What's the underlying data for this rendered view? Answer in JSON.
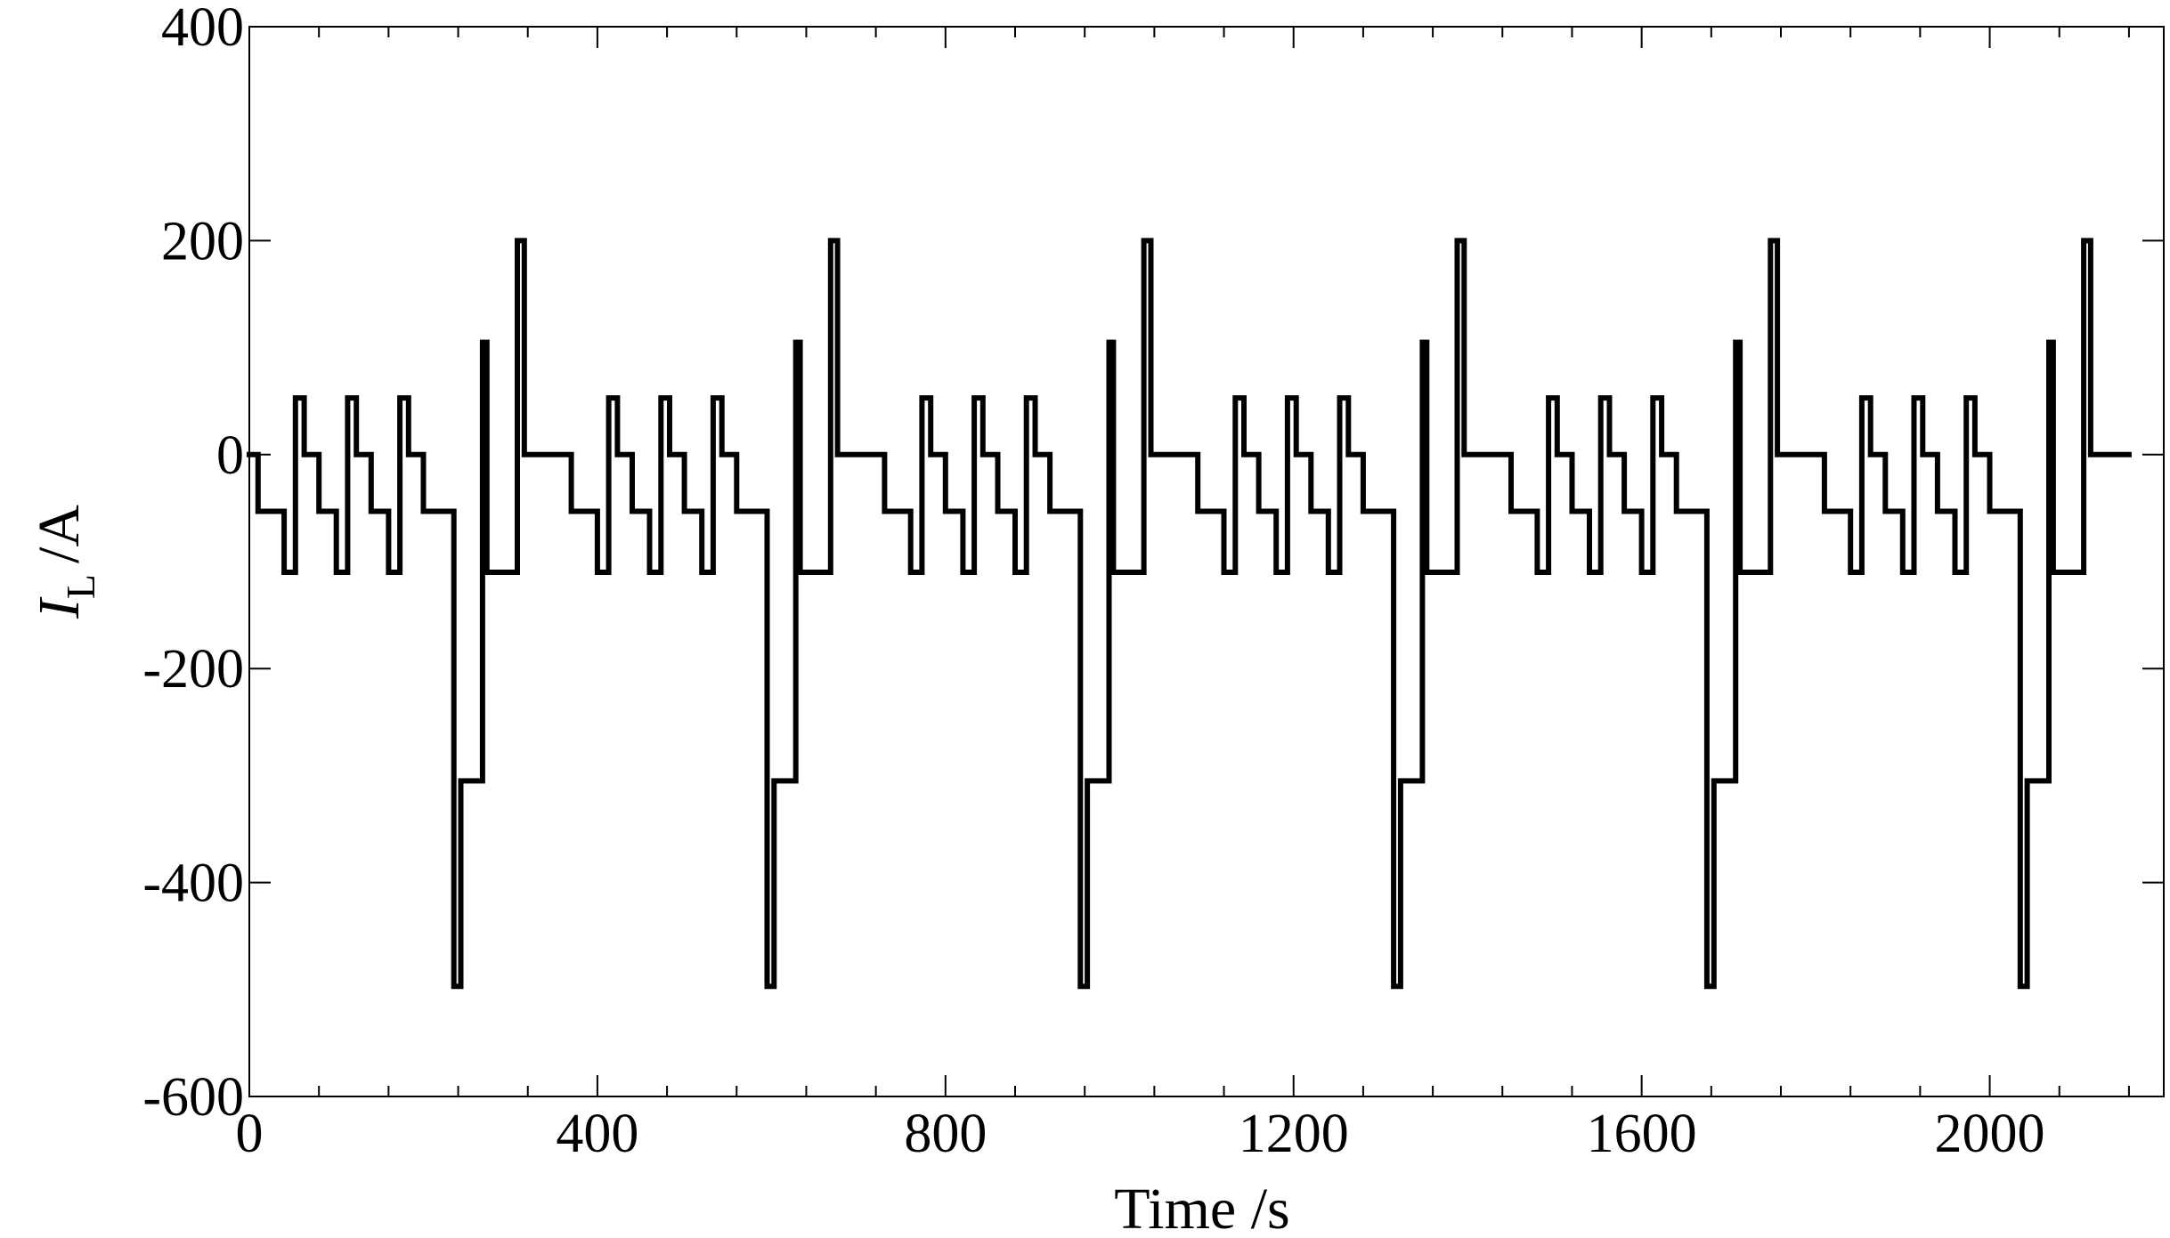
{
  "chart_data": {
    "type": "line",
    "title": "",
    "xlabel": "Time /s",
    "ylabel": {
      "main": "I",
      "subscript": "L",
      "unit": "/A"
    },
    "xlim": [
      0,
      2200
    ],
    "ylim": [
      -600,
      400
    ],
    "xticks": [
      0,
      400,
      800,
      1200,
      1600,
      2000
    ],
    "xtick_labels": [
      "0",
      "400",
      "800",
      "1200",
      "1600",
      "2000"
    ],
    "x_minor_step": 80,
    "yticks": [
      -600,
      -400,
      -200,
      0,
      200,
      400
    ],
    "ytick_labels": [
      "-600",
      "-400",
      "-200",
      "0",
      "200",
      "400"
    ],
    "grid": false,
    "legend": "none",
    "line_color": "#000000",
    "cycle": {
      "period": 360,
      "count": 6,
      "end_time": 2160,
      "profile": [
        [
          0,
          0
        ],
        [
          10,
          0
        ],
        [
          10,
          -53
        ],
        [
          40,
          -53
        ],
        [
          40,
          -110
        ],
        [
          53,
          -110
        ],
        [
          53,
          53
        ],
        [
          63,
          53
        ],
        [
          63,
          0
        ],
        [
          80,
          0
        ],
        [
          80,
          -53
        ],
        [
          100,
          -53
        ],
        [
          100,
          -110
        ],
        [
          113,
          -110
        ],
        [
          113,
          53
        ],
        [
          123,
          53
        ],
        [
          123,
          0
        ],
        [
          140,
          0
        ],
        [
          140,
          -53
        ],
        [
          160,
          -53
        ],
        [
          160,
          -110
        ],
        [
          173,
          -110
        ],
        [
          173,
          53
        ],
        [
          183,
          53
        ],
        [
          183,
          0
        ],
        [
          200,
          0
        ],
        [
          200,
          -53
        ],
        [
          235,
          -53
        ],
        [
          235,
          -497
        ],
        [
          243,
          -497
        ],
        [
          243,
          -305
        ],
        [
          268,
          -305
        ],
        [
          268,
          105
        ],
        [
          273,
          105
        ],
        [
          273,
          -110
        ],
        [
          308,
          -110
        ],
        [
          308,
          200
        ],
        [
          316,
          200
        ],
        [
          316,
          0
        ],
        [
          360,
          0
        ]
      ]
    }
  }
}
